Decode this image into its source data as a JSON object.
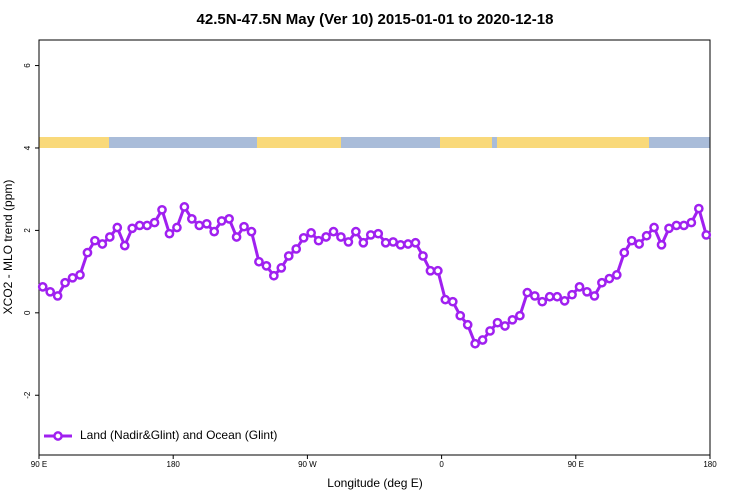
{
  "chart_data": {
    "type": "line",
    "title": "42.5N-47.5N May (Ver 10)   2015-01-01 to 2020-12-18",
    "x_label": "Longitude (deg E)",
    "y_label": "XCO2 - MLO trend (ppm)",
    "x": [
      92.5,
      97.5,
      102.5,
      107.5,
      112.5,
      117.5,
      122.5,
      127.5,
      132.5,
      137.5,
      142.5,
      147.5,
      152.5,
      157.5,
      162.5,
      167.5,
      172.5,
      177.5,
      182.5,
      187.5,
      192.5,
      197.5,
      202.5,
      207.5,
      212.5,
      217.5,
      222.5,
      227.5,
      232.5,
      237.5,
      242.5,
      247.5,
      252.5,
      257.5,
      262.5,
      267.5,
      272.5,
      277.5,
      282.5,
      287.5,
      292.5,
      297.5,
      302.5,
      307.5,
      312.5,
      317.5,
      322.5,
      327.5,
      332.5,
      337.5,
      342.5,
      347.5,
      352.5,
      357.5,
      362.5,
      367.5,
      372.5,
      377.5,
      382.5,
      387.5,
      392.5,
      397.5,
      402.5,
      407.5,
      412.5,
      417.5,
      422.5,
      427.5,
      432.5,
      437.5,
      442.5,
      447.5,
      452.5,
      457.5,
      462.5,
      467.5,
      472.5,
      477.5,
      482.5,
      487.5,
      492.5,
      497.5,
      502.5,
      507.5,
      512.5,
      517.5,
      522.5,
      527.5,
      532.5,
      537.5
    ],
    "series": [
      {
        "name": "Land (Nadir&Glint) and Ocean (Glint)",
        "color": "#a020f0",
        "values": [
          0.63,
          0.51,
          0.41,
          0.73,
          0.85,
          0.92,
          1.46,
          1.75,
          1.67,
          1.84,
          2.07,
          1.63,
          2.05,
          2.12,
          2.12,
          2.19,
          2.5,
          1.92,
          2.07,
          2.57,
          2.28,
          2.12,
          2.16,
          1.97,
          2.23,
          2.28,
          1.84,
          2.09,
          1.97,
          1.24,
          1.14,
          0.9,
          1.09,
          1.38,
          1.55,
          1.82,
          1.94,
          1.75,
          1.84,
          1.97,
          1.84,
          1.72,
          1.97,
          1.7,
          1.89,
          1.92,
          1.7,
          1.72,
          1.65,
          1.67,
          1.7,
          1.38,
          1.02,
          1.02,
          0.32,
          0.27,
          -0.07,
          -0.29,
          -0.75,
          -0.66,
          -0.44,
          -0.24,
          -0.32,
          -0.17,
          -0.07,
          0.49,
          0.41,
          0.27,
          0.39,
          0.39,
          0.29,
          0.44,
          0.63,
          0.51,
          0.41,
          0.73,
          0.83,
          0.92,
          1.46,
          1.75,
          1.67,
          1.87,
          2.07,
          1.65,
          2.05,
          2.12,
          2.12,
          2.19,
          2.53,
          1.89
        ]
      }
    ],
    "xlim": [
      90,
      540
    ],
    "xticks": [
      {
        "value": 90,
        "label": "90 E"
      },
      180,
      {
        "value": 270,
        "label": "90 W"
      },
      {
        "value": 360,
        "label": "0"
      },
      {
        "value": 450,
        "label": "90 E"
      },
      {
        "value": 540,
        "label": "180"
      }
    ],
    "ylim": [
      -3.45,
      6.62
    ],
    "yticks": [
      -2,
      0,
      2,
      4,
      6
    ],
    "legend_position": "bottom-left"
  }
}
